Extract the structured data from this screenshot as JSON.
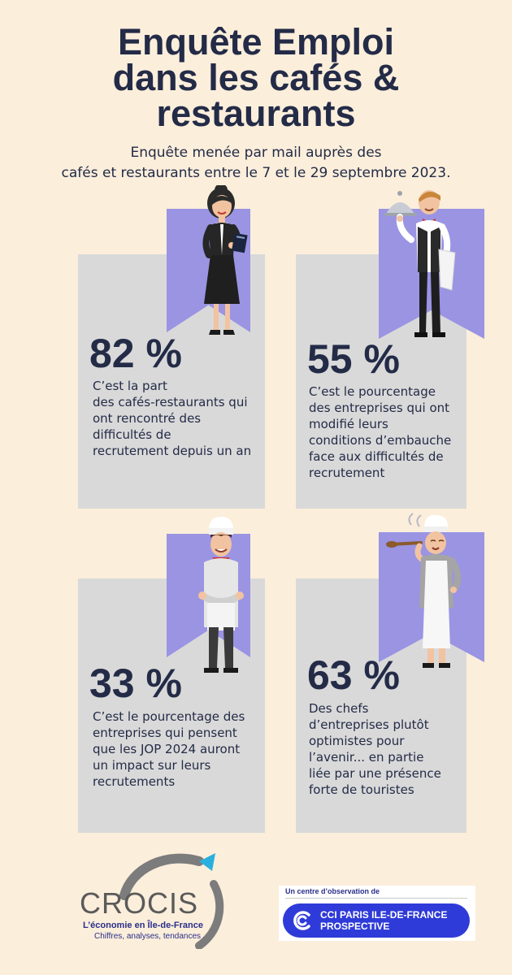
{
  "header": {
    "title_lines": [
      "Enquête Emploi",
      "dans les cafés &",
      "restaurants"
    ],
    "subtitle_lines": [
      "Enquête menée par mail auprès des",
      "cafés et restaurants entre le 7 et le 29 septembre 2023."
    ]
  },
  "stats": [
    {
      "value": "82 %",
      "lines": [
        "C’est la part",
        "des cafés-restaurants qui",
        "ont rencontré des",
        "difficultés de",
        "recrutement depuis un an"
      ]
    },
    {
      "value": "55 %",
      "lines": [
        "C’est le pourcentage",
        "des entreprises qui ont",
        "modifié leurs",
        "conditions d’embauche",
        "face aux difficultés de",
        "recrutement"
      ]
    },
    {
      "value": "33 %",
      "lines": [
        "C’est le pourcentage des",
        "entreprises qui pensent",
        "que les JOP 2024 auront",
        "un impact sur leurs",
        "recrutements"
      ]
    },
    {
      "value": "63 %",
      "lines": [
        "Des chefs",
        "d’entreprises plutôt",
        "optimistes pour",
        "l’avenir...  en partie",
        "liée par une présence",
        "forte de touristes"
      ]
    }
  ],
  "footer": {
    "crocis": {
      "name": "CROCIS",
      "tagline": "L’économie en Île-de-France",
      "subline": "Chiffres, analyses, tendances"
    },
    "cci": {
      "caption": "Un centre d’observation de",
      "name_lines": [
        "CCI PARIS ILE-DE-FRANCE",
        "PROSPECTIVE"
      ]
    }
  },
  "colors": {
    "background": "#fbeedb",
    "card": "#d9d9d9",
    "ribbon": "#9a94e3",
    "text": "#232b47",
    "cci_blue": "#2f3bd8"
  },
  "icons": [
    "waitress-icon",
    "waiter-icon",
    "cook-icon",
    "chef-tasting-icon",
    "crocis-logo-icon",
    "cci-logo-icon"
  ]
}
